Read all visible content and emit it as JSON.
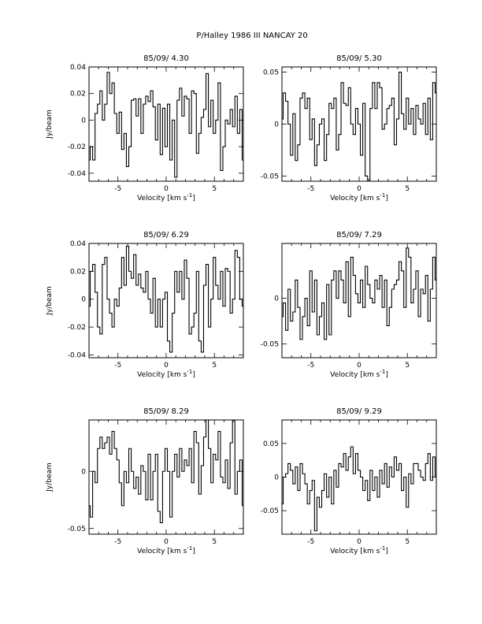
{
  "figure": {
    "title": "P/Halley 1986 III   NANCAY     20"
  },
  "chart_data": [
    {
      "type": "line",
      "title": "85/09/ 4.30",
      "xlabel": "Velocity [km s",
      "xlabel_sup": "-1",
      "xlabel_tail": "]",
      "ylabel": "Jy/beam",
      "xlim": [
        -8,
        8
      ],
      "ylim": [
        -0.046,
        0.04
      ],
      "xticks": [
        -5,
        0,
        5
      ],
      "xtick_labels": [
        "-5",
        "0",
        "5"
      ],
      "yticks": [
        -0.04,
        -0.02,
        0,
        0.02,
        0.04
      ],
      "ytick_labels": [
        "-0.04",
        "-0.02",
        "0",
        "0.02",
        "0.04"
      ],
      "grid": false,
      "series": [
        {
          "x": [
            -8,
            -7.75,
            -7.5,
            -7.25,
            -7,
            -6.75,
            -6.5,
            -6.25,
            -6,
            -5.75,
            -5.5,
            -5.25,
            -5,
            -4.75,
            -4.5,
            -4.25,
            -4,
            -3.75,
            -3.5,
            -3.25,
            -3,
            -2.75,
            -2.5,
            -2.25,
            -2,
            -1.75,
            -1.5,
            -1.25,
            -1,
            -0.75,
            -0.5,
            -0.25,
            0,
            0.25,
            0.5,
            0.75,
            1,
            1.25,
            1.5,
            1.75,
            2,
            2.25,
            2.5,
            2.75,
            3,
            3.25,
            3.5,
            3.75,
            4,
            4.25,
            4.5,
            4.75,
            5,
            5.25,
            5.5,
            5.75,
            6,
            6.25,
            6.5,
            6.75,
            7,
            7.25,
            7.5,
            7.75,
            8
          ],
          "y": [
            -0.03,
            -0.02,
            -0.03,
            0.005,
            0.012,
            0.022,
            0.0,
            0.012,
            0.036,
            0.02,
            0.028,
            0.005,
            -0.01,
            0.006,
            -0.022,
            -0.01,
            -0.035,
            -0.02,
            0.015,
            0.016,
            0.003,
            0.016,
            -0.01,
            0.012,
            0.018,
            0.014,
            0.022,
            0.01,
            -0.015,
            0.012,
            -0.026,
            0.009,
            -0.02,
            0.012,
            -0.03,
            0.0,
            -0.043,
            0.015,
            0.024,
            0.003,
            0.018,
            0.016,
            -0.01,
            0.022,
            0.02,
            -0.025,
            -0.01,
            0.002,
            0.008,
            0.035,
            -0.005,
            0.015,
            -0.01,
            0.0,
            0.028,
            -0.038,
            -0.02,
            0.0,
            -0.003,
            0.008,
            -0.005,
            0.018,
            -0.01,
            0.008,
            -0.03
          ]
        }
      ]
    },
    {
      "type": "line",
      "title": "85/09/ 5.30",
      "xlabel": "Velocity [km s",
      "xlabel_sup": "-1",
      "xlabel_tail": "]",
      "ylabel": "",
      "xlim": [
        -8,
        8
      ],
      "ylim": [
        -0.055,
        0.055
      ],
      "xticks": [
        -5,
        0,
        5
      ],
      "xtick_labels": [
        "-5",
        "0",
        "5"
      ],
      "yticks": [
        -0.05,
        0,
        0.05
      ],
      "ytick_labels": [
        "-0.05",
        "0",
        "0.05"
      ],
      "grid": false,
      "series": [
        {
          "x": [
            -8,
            -7.75,
            -7.5,
            -7.25,
            -7,
            -6.75,
            -6.5,
            -6.25,
            -6,
            -5.75,
            -5.5,
            -5.25,
            -5,
            -4.75,
            -4.5,
            -4.25,
            -4,
            -3.75,
            -3.5,
            -3.25,
            -3,
            -2.75,
            -2.5,
            -2.25,
            -2,
            -1.75,
            -1.5,
            -1.25,
            -1,
            -0.75,
            -0.5,
            -0.25,
            0,
            0.25,
            0.5,
            0.75,
            1,
            1.25,
            1.5,
            1.75,
            2,
            2.25,
            2.5,
            2.75,
            3,
            3.25,
            3.5,
            3.75,
            4,
            4.25,
            4.5,
            4.75,
            5,
            5.25,
            5.5,
            5.75,
            6,
            6.25,
            6.5,
            6.75,
            7,
            7.25,
            7.5,
            7.75,
            8
          ],
          "y": [
            0.005,
            0.03,
            0.022,
            0.0,
            -0.03,
            0.01,
            -0.035,
            -0.02,
            0.025,
            0.03,
            0.015,
            0.025,
            -0.015,
            0.005,
            -0.04,
            -0.02,
            0.0,
            0.005,
            -0.035,
            -0.01,
            0.02,
            0.015,
            0.025,
            -0.025,
            -0.01,
            0.04,
            0.02,
            0.018,
            0.035,
            0.0,
            -0.01,
            0.015,
            0.0,
            -0.03,
            0.02,
            -0.05,
            -0.055,
            0.015,
            0.04,
            0.015,
            0.04,
            0.035,
            -0.005,
            0.0,
            0.015,
            0.018,
            0.025,
            -0.02,
            0.005,
            0.05,
            0.01,
            -0.005,
            0.025,
            0.0,
            0.015,
            -0.01,
            0.018,
            0.005,
            0.0,
            0.02,
            -0.01,
            0.025,
            -0.015,
            0.04,
            0.03
          ]
        }
      ]
    },
    {
      "type": "line",
      "title": "85/09/ 6.29",
      "xlabel": "Velocity [km s",
      "xlabel_sup": "-1",
      "xlabel_tail": "]",
      "ylabel": "Jy/beam",
      "xlim": [
        -8,
        8
      ],
      "ylim": [
        -0.042,
        0.04
      ],
      "xticks": [
        -5,
        0,
        5
      ],
      "xtick_labels": [
        "-5",
        "0",
        "5"
      ],
      "yticks": [
        -0.04,
        -0.02,
        0,
        0.02,
        0.04
      ],
      "ytick_labels": [
        "-0.04",
        "-0.02",
        "0",
        "0.02",
        "0.04"
      ],
      "grid": false,
      "series": [
        {
          "x": [
            -8,
            -7.75,
            -7.5,
            -7.25,
            -7,
            -6.75,
            -6.5,
            -6.25,
            -6,
            -5.75,
            -5.5,
            -5.25,
            -5,
            -4.75,
            -4.5,
            -4.25,
            -4,
            -3.75,
            -3.5,
            -3.25,
            -3,
            -2.75,
            -2.5,
            -2.25,
            -2,
            -1.75,
            -1.5,
            -1.25,
            -1,
            -0.75,
            -0.5,
            -0.25,
            0,
            0.25,
            0.5,
            0.75,
            1,
            1.25,
            1.5,
            1.75,
            2,
            2.25,
            2.5,
            2.75,
            3,
            3.25,
            3.5,
            3.75,
            4,
            4.25,
            4.5,
            4.75,
            5,
            5.25,
            5.5,
            5.75,
            6,
            6.25,
            6.5,
            6.75,
            7,
            7.25,
            7.5,
            7.75,
            8
          ],
          "y": [
            -0.005,
            0.02,
            0.025,
            0.005,
            -0.02,
            -0.025,
            0.025,
            0.03,
            0.0,
            -0.01,
            -0.02,
            0.0,
            -0.005,
            0.008,
            0.03,
            0.01,
            0.038,
            0.02,
            0.015,
            0.032,
            0.01,
            0.018,
            0.008,
            0.005,
            0.02,
            0.0,
            -0.01,
            0.015,
            -0.02,
            0.0,
            -0.02,
            0.0,
            0.005,
            -0.03,
            -0.038,
            -0.01,
            0.02,
            0.005,
            0.02,
            0.0,
            0.028,
            0.015,
            -0.025,
            -0.02,
            -0.01,
            0.02,
            -0.03,
            -0.038,
            0.01,
            0.025,
            -0.02,
            0.0,
            0.03,
            0.01,
            0.0,
            0.02,
            -0.005,
            0.022,
            0.02,
            -0.01,
            0.0,
            0.035,
            0.03,
            0.0,
            -0.005
          ]
        }
      ]
    },
    {
      "type": "line",
      "title": "85/09/ 7.29",
      "xlabel": "Velocity [km s",
      "xlabel_sup": "-1",
      "xlabel_tail": "]",
      "ylabel": "",
      "xlim": [
        -8,
        8
      ],
      "ylim": [
        -0.065,
        0.06
      ],
      "xticks": [
        -5,
        0,
        5
      ],
      "xtick_labels": [
        "-5",
        "0",
        "5"
      ],
      "yticks": [
        -0.05,
        0
      ],
      "ytick_labels": [
        "-0.05",
        "0"
      ],
      "grid": false,
      "series": [
        {
          "x": [
            -8,
            -7.75,
            -7.5,
            -7.25,
            -7,
            -6.75,
            -6.5,
            -6.25,
            -6,
            -5.75,
            -5.5,
            -5.25,
            -5,
            -4.75,
            -4.5,
            -4.25,
            -4,
            -3.75,
            -3.5,
            -3.25,
            -3,
            -2.75,
            -2.5,
            -2.25,
            -2,
            -1.75,
            -1.5,
            -1.25,
            -1,
            -0.75,
            -0.5,
            -0.25,
            0,
            0.25,
            0.5,
            0.75,
            1,
            1.25,
            1.5,
            1.75,
            2,
            2.25,
            2.5,
            2.75,
            3,
            3.25,
            3.5,
            3.75,
            4,
            4.25,
            4.5,
            4.75,
            5,
            5.25,
            5.5,
            5.75,
            6,
            6.25,
            6.5,
            6.75,
            7,
            7.25,
            7.5,
            7.75,
            8
          ],
          "y": [
            -0.02,
            -0.005,
            -0.035,
            0.01,
            -0.025,
            -0.015,
            0.02,
            -0.01,
            -0.045,
            -0.02,
            0.0,
            -0.03,
            0.03,
            -0.015,
            0.02,
            -0.04,
            -0.02,
            -0.005,
            -0.045,
            0.015,
            -0.04,
            0.02,
            0.03,
            0.0,
            0.03,
            0.02,
            -0.005,
            0.04,
            -0.02,
            0.045,
            0.025,
            0.005,
            -0.005,
            0.02,
            -0.01,
            0.035,
            0.015,
            0.0,
            -0.005,
            0.02,
            0.01,
            0.025,
            -0.01,
            0.02,
            -0.03,
            -0.01,
            0.01,
            0.015,
            0.02,
            0.04,
            0.03,
            -0.01,
            0.055,
            0.045,
            -0.005,
            0.01,
            0.03,
            -0.02,
            0.01,
            0.005,
            0.025,
            -0.025,
            0.01,
            0.045,
            0.02
          ]
        }
      ]
    },
    {
      "type": "line",
      "title": "85/09/ 8.29",
      "xlabel": "Velocity [km s",
      "xlabel_sup": "-1",
      "xlabel_tail": "]",
      "ylabel": "Jy/beam",
      "xlim": [
        -8,
        8
      ],
      "ylim": [
        -0.055,
        0.045
      ],
      "xticks": [
        -5,
        0,
        5
      ],
      "xtick_labels": [
        "-5",
        "0",
        "5"
      ],
      "yticks": [
        -0.05,
        0
      ],
      "ytick_labels": [
        "-0.05",
        "0"
      ],
      "grid": false,
      "series": [
        {
          "x": [
            -8,
            -7.75,
            -7.5,
            -7.25,
            -7,
            -6.75,
            -6.5,
            -6.25,
            -6,
            -5.75,
            -5.5,
            -5.25,
            -5,
            -4.75,
            -4.5,
            -4.25,
            -4,
            -3.75,
            -3.5,
            -3.25,
            -3,
            -2.75,
            -2.5,
            -2.25,
            -2,
            -1.75,
            -1.5,
            -1.25,
            -1,
            -0.75,
            -0.5,
            -0.25,
            0,
            0.25,
            0.5,
            0.75,
            1,
            1.25,
            1.5,
            1.75,
            2,
            2.25,
            2.5,
            2.75,
            3,
            3.25,
            3.5,
            3.75,
            4,
            4.25,
            4.5,
            4.75,
            5,
            5.25,
            5.5,
            5.75,
            6,
            6.25,
            6.5,
            6.75,
            7,
            7.25,
            7.5,
            7.75,
            8
          ],
          "y": [
            -0.03,
            -0.04,
            0.0,
            -0.01,
            0.02,
            0.03,
            0.02,
            0.025,
            0.03,
            0.015,
            0.035,
            0.02,
            0.01,
            -0.01,
            -0.03,
            0.0,
            -0.01,
            0.02,
            0.0,
            -0.015,
            -0.005,
            -0.02,
            0.005,
            0.0,
            -0.025,
            0.015,
            -0.025,
            0.0,
            0.015,
            -0.035,
            -0.045,
            0.0,
            0.02,
            0.0,
            -0.04,
            0.0,
            0.015,
            -0.005,
            0.02,
            0.0,
            0.01,
            0.005,
            0.02,
            -0.01,
            0.035,
            0.025,
            -0.02,
            0.005,
            0.03,
            0.045,
            0.02,
            -0.01,
            0.015,
            0.01,
            0.035,
            -0.005,
            -0.01,
            0.01,
            -0.015,
            0.025,
            0.045,
            -0.02,
            0.0,
            0.01,
            -0.03
          ]
        }
      ]
    },
    {
      "type": "line",
      "title": "85/09/ 9.29",
      "xlabel": "Velocity [km s",
      "xlabel_sup": "-1",
      "xlabel_tail": "]",
      "ylabel": "",
      "xlim": [
        -8,
        8
      ],
      "ylim": [
        -0.085,
        0.085
      ],
      "xticks": [
        -5,
        0,
        5
      ],
      "xtick_labels": [
        "-5",
        "0",
        "5"
      ],
      "yticks": [
        -0.05,
        0,
        0.05
      ],
      "ytick_labels": [
        "-0.05",
        "0",
        "0.05"
      ],
      "grid": false,
      "series": [
        {
          "x": [
            -8,
            -7.75,
            -7.5,
            -7.25,
            -7,
            -6.75,
            -6.5,
            -6.25,
            -6,
            -5.75,
            -5.5,
            -5.25,
            -5,
            -4.75,
            -4.5,
            -4.25,
            -4,
            -3.75,
            -3.5,
            -3.25,
            -3,
            -2.75,
            -2.5,
            -2.25,
            -2,
            -1.75,
            -1.5,
            -1.25,
            -1,
            -0.75,
            -0.5,
            -0.25,
            0,
            0.25,
            0.5,
            0.75,
            1,
            1.25,
            1.5,
            1.75,
            2,
            2.25,
            2.5,
            2.75,
            3,
            3.25,
            3.5,
            3.75,
            4,
            4.25,
            4.5,
            4.75,
            5,
            5.25,
            5.5,
            5.75,
            6,
            6.25,
            6.5,
            6.75,
            7,
            7.25,
            7.5,
            7.75,
            8
          ],
          "y": [
            -0.04,
            0.0,
            0.005,
            0.02,
            0.01,
            -0.01,
            0.015,
            -0.02,
            0.02,
            0.005,
            -0.01,
            -0.04,
            -0.02,
            -0.005,
            -0.08,
            -0.03,
            -0.045,
            -0.02,
            0.005,
            -0.03,
            0.0,
            -0.04,
            0.01,
            -0.015,
            0.02,
            0.015,
            0.035,
            0.01,
            0.03,
            0.045,
            0.005,
            0.035,
            0.01,
            0.0,
            -0.02,
            -0.005,
            -0.035,
            0.01,
            -0.02,
            0.0,
            -0.03,
            0.01,
            -0.01,
            0.02,
            -0.015,
            0.015,
            0.0,
            0.03,
            0.01,
            0.02,
            -0.02,
            0.0,
            -0.045,
            0.005,
            -0.01,
            0.02,
            0.02,
            0.01,
            0.0,
            -0.005,
            0.02,
            0.035,
            -0.005,
            0.03,
            0.0
          ]
        }
      ]
    }
  ]
}
